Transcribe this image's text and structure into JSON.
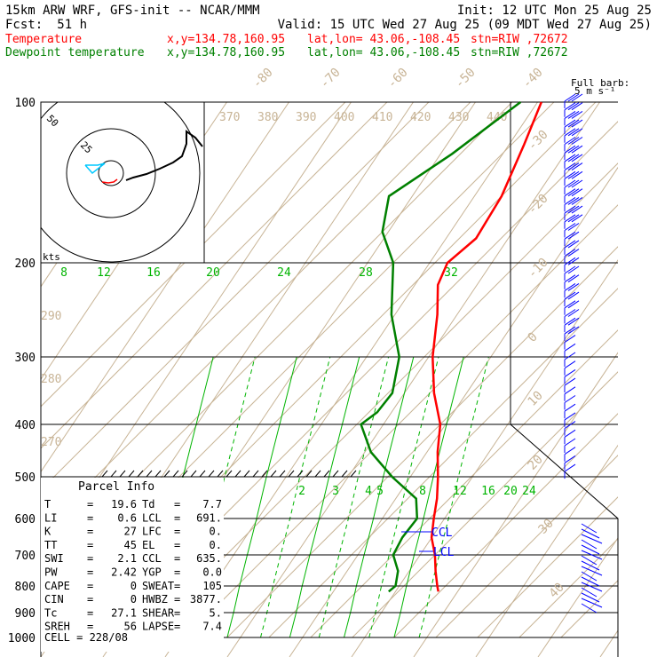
{
  "header": {
    "line1_left": "15km ARW WRF, GFS-init  -- NCAR/MMM",
    "line1_right": "Init: 12 UTC Mon 25 Aug 25",
    "fcst_label": "Fcst:",
    "fcst_value": "51 h",
    "valid": "Valid: 15 UTC Wed 27 Aug 25 (09 MDT Wed 27 Aug 25)"
  },
  "legend": {
    "temperature": {
      "name": "Temperature",
      "xy": "x,y=134.78,160.95",
      "latlon": "lat,lon= 43.06,-108.45",
      "stn": "stn=RIW ,72672"
    },
    "dewpoint": {
      "name": "Dewpoint temperature",
      "xy": "x,y=134.78,160.95",
      "latlon": "lat,lon= 43.06,-108.45",
      "stn": "stn=RIW ,72672"
    }
  },
  "wind_barb_label": {
    "line1": "Full barb:",
    "line2": "5 m s⁻¹"
  },
  "hodograph": {
    "ring_labels": [
      "50",
      "25"
    ],
    "units": "kts"
  },
  "parcel_info": {
    "title": "Parcel Info",
    "rows": [
      {
        "l1": "T",
        "v1": "19.6",
        "l2": "Td",
        "v2": "7.7"
      },
      {
        "l1": "LI",
        "v1": "0.6",
        "l2": "LCL",
        "v2": "691."
      },
      {
        "l1": "K",
        "v1": "27",
        "l2": "LFC",
        "v2": "0."
      },
      {
        "l1": "TT",
        "v1": "45",
        "l2": "EL",
        "v2": "0."
      },
      {
        "l1": "SWI",
        "v1": "2.1",
        "l2": "CCL",
        "v2": "635."
      },
      {
        "l1": "PW",
        "v1": "2.42",
        "l2": "YGP",
        "v2": "0.0"
      },
      {
        "l1": "CAPE",
        "v1": "0",
        "l2": "SWEAT",
        "v2": "105"
      },
      {
        "l1": "CIN",
        "v1": "0",
        "l2": "HWBZ",
        "v2": "3877."
      },
      {
        "l1": "Tc",
        "v1": "27.1",
        "l2": "SHEAR",
        "v2": "5."
      },
      {
        "l1": "SREH",
        "v1": "56",
        "l2": "LAPSE",
        "v2": "7.4"
      }
    ],
    "cell": "CELL = 228/08"
  },
  "level_labels": {
    "ccl": "CCL",
    "lcl": "LCL"
  },
  "colors": {
    "temperature": "#ff0000",
    "dewpoint": "#008000",
    "isotherm": "#c8b496",
    "adiabat": "#c8b496",
    "mixing_ratio": "#00b400",
    "wind": "#0000ff",
    "hodo_upper": "#000000",
    "hodo_lower": "#ff0000",
    "hodo_low": "#00c8ff"
  },
  "chart_data": {
    "type": "line",
    "title": "",
    "ylabel": "",
    "xlabel": "",
    "pressure_levels": [
      100,
      200,
      300,
      400,
      500,
      600,
      700,
      800,
      900,
      1000
    ],
    "upper_temp_ticks": [
      -80,
      -70,
      -60,
      -50,
      -40
    ],
    "right_temp_ticks": [
      -30,
      -20,
      -10,
      0,
      10,
      20,
      30,
      40
    ],
    "theta_labels_top": [
      370,
      380,
      390,
      400,
      410,
      420,
      430,
      440
    ],
    "theta_labels_left": [
      290,
      280,
      270
    ],
    "mixing_ratio_labels_upper": [
      8,
      12,
      16,
      20,
      24,
      28,
      32
    ],
    "mixing_ratio_labels_lower": [
      2,
      3,
      4,
      5,
      8,
      12,
      16,
      20,
      24
    ],
    "series": [
      {
        "name": "Temperature",
        "points": [
          [
            100,
            -73
          ],
          [
            120,
            -67
          ],
          [
            150,
            -60
          ],
          [
            180,
            -56
          ],
          [
            200,
            -57
          ],
          [
            220,
            -54
          ],
          [
            250,
            -47
          ],
          [
            300,
            -38
          ],
          [
            350,
            -29
          ],
          [
            400,
            -20
          ],
          [
            450,
            -14
          ],
          [
            500,
            -8
          ],
          [
            550,
            -3
          ],
          [
            600,
            1
          ],
          [
            650,
            5
          ],
          [
            700,
            10
          ],
          [
            750,
            14
          ],
          [
            800,
            18
          ],
          [
            820,
            19.6
          ]
        ]
      },
      {
        "name": "Dewpoint temperature",
        "points": [
          [
            100,
            -78
          ],
          [
            125,
            -82
          ],
          [
            150,
            -87
          ],
          [
            175,
            -80
          ],
          [
            200,
            -70
          ],
          [
            250,
            -58
          ],
          [
            300,
            -46
          ],
          [
            350,
            -39
          ],
          [
            380,
            -38
          ],
          [
            400,
            -39
          ],
          [
            450,
            -30
          ],
          [
            500,
            -19
          ],
          [
            550,
            -8
          ],
          [
            600,
            -3
          ],
          [
            650,
            -2
          ],
          [
            700,
            0
          ],
          [
            750,
            5
          ],
          [
            800,
            8
          ],
          [
            820,
            7.7
          ]
        ]
      }
    ],
    "wind": [
      {
        "p": 100,
        "dir": 270,
        "spd_ms": 30
      },
      {
        "p": 200,
        "dir": 265,
        "spd_ms": 25
      },
      {
        "p": 300,
        "dir": 255,
        "spd_ms": 15
      },
      {
        "p": 400,
        "dir": 240,
        "spd_ms": 10
      },
      {
        "p": 500,
        "dir": 230,
        "spd_ms": 5
      },
      {
        "p": 600,
        "dir": 180,
        "spd_ms": 5
      },
      {
        "p": 700,
        "dir": 160,
        "spd_ms": 5
      },
      {
        "p": 800,
        "dir": 180,
        "spd_ms": 5
      }
    ],
    "grid": true,
    "legend": "top-left"
  }
}
